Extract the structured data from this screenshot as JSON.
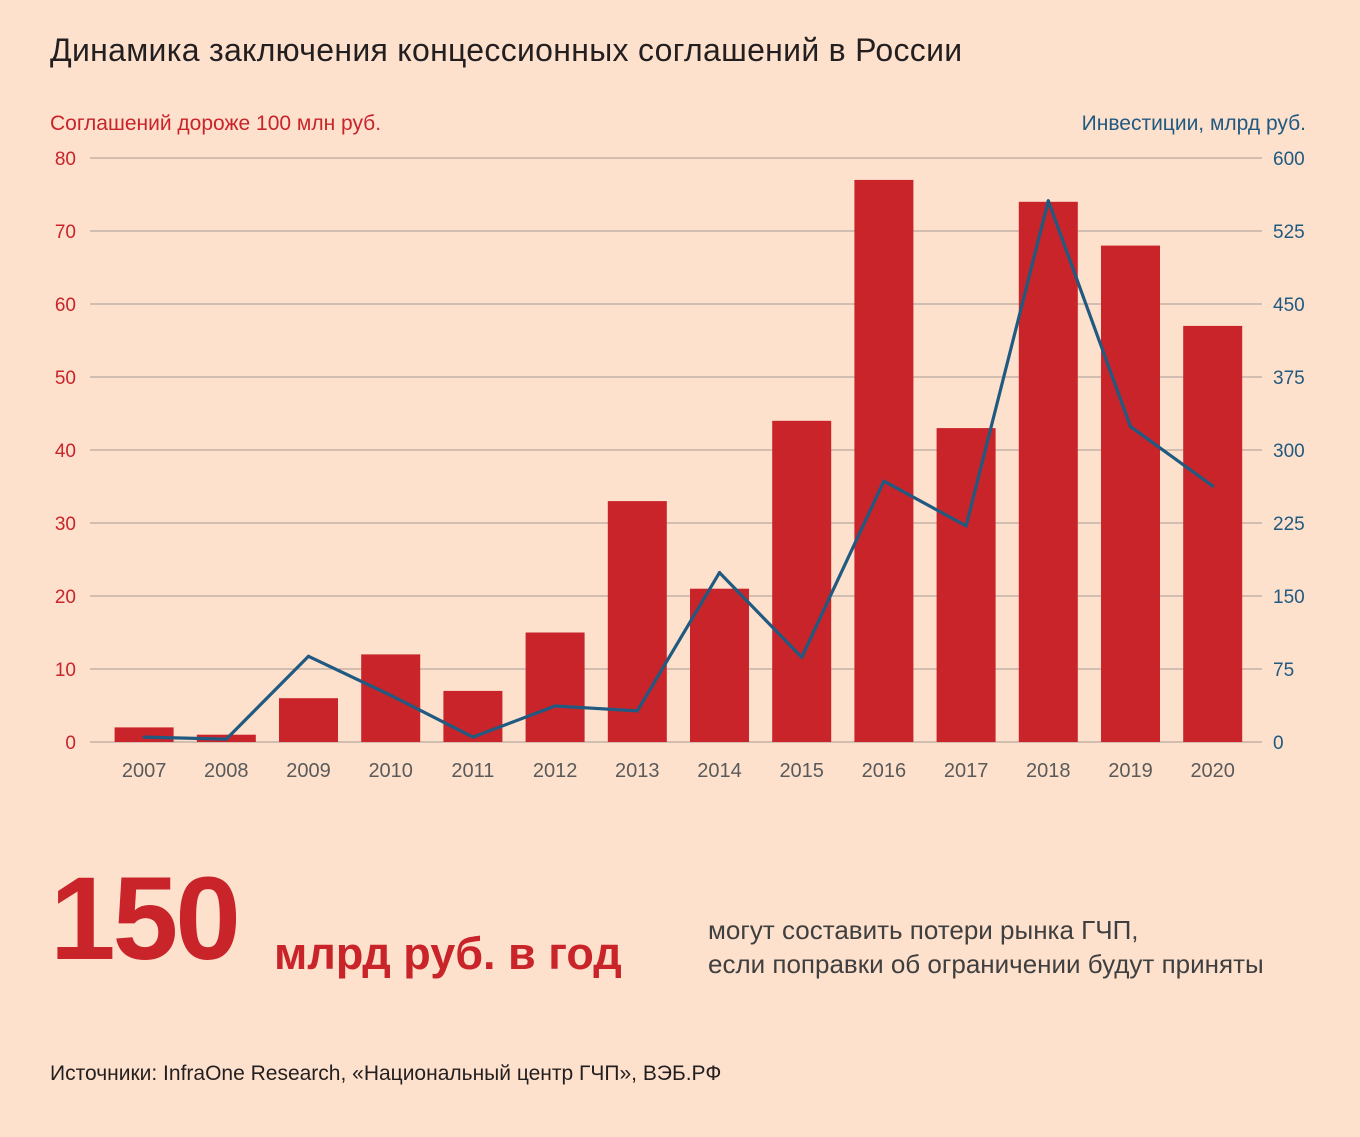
{
  "title": "Динамика заключения концессионных соглашений в России",
  "chart_data": {
    "type": "bar",
    "categories": [
      "2007",
      "2008",
      "2009",
      "2010",
      "2011",
      "2012",
      "2013",
      "2014",
      "2015",
      "2016",
      "2017",
      "2018",
      "2019",
      "2020"
    ],
    "series": [
      {
        "name": "Соглашений дороже 100 млн руб.",
        "type": "bar",
        "axis": "left",
        "color": "#c8242a",
        "values": [
          2,
          1,
          6,
          12,
          7,
          15,
          33,
          21,
          44,
          77,
          43,
          74,
          68,
          57
        ]
      },
      {
        "name": "Инвестиции, млрд руб.",
        "type": "line",
        "axis": "right",
        "color": "#215a81",
        "values": [
          5,
          3,
          88,
          48,
          5,
          37,
          32,
          174,
          87,
          268,
          222,
          556,
          324,
          263
        ]
      }
    ],
    "y_left": {
      "label": "Соглашений дороже 100 млн руб.",
      "ticks": [
        0,
        10,
        20,
        30,
        40,
        50,
        60,
        70,
        80
      ],
      "range": [
        0,
        80
      ],
      "color": "#c8242a"
    },
    "y_right": {
      "label": "Инвестиции, млрд руб.",
      "ticks": [
        0,
        75,
        150,
        225,
        300,
        375,
        450,
        525,
        600
      ],
      "range": [
        0,
        600
      ],
      "color": "#215a81"
    },
    "grid": true,
    "grid_color": "#a89b94",
    "tick_label_color": "#5a5a5a"
  },
  "highlight": {
    "number": "150",
    "unit": "млрд руб. в год",
    "description_line1": "могут составить потери рынка ГЧП,",
    "description_line2": "если поправки об ограничении будут приняты"
  },
  "sources": "Источники: InfraOne Research, «Национальный центр ГЧП», ВЭБ.РФ"
}
